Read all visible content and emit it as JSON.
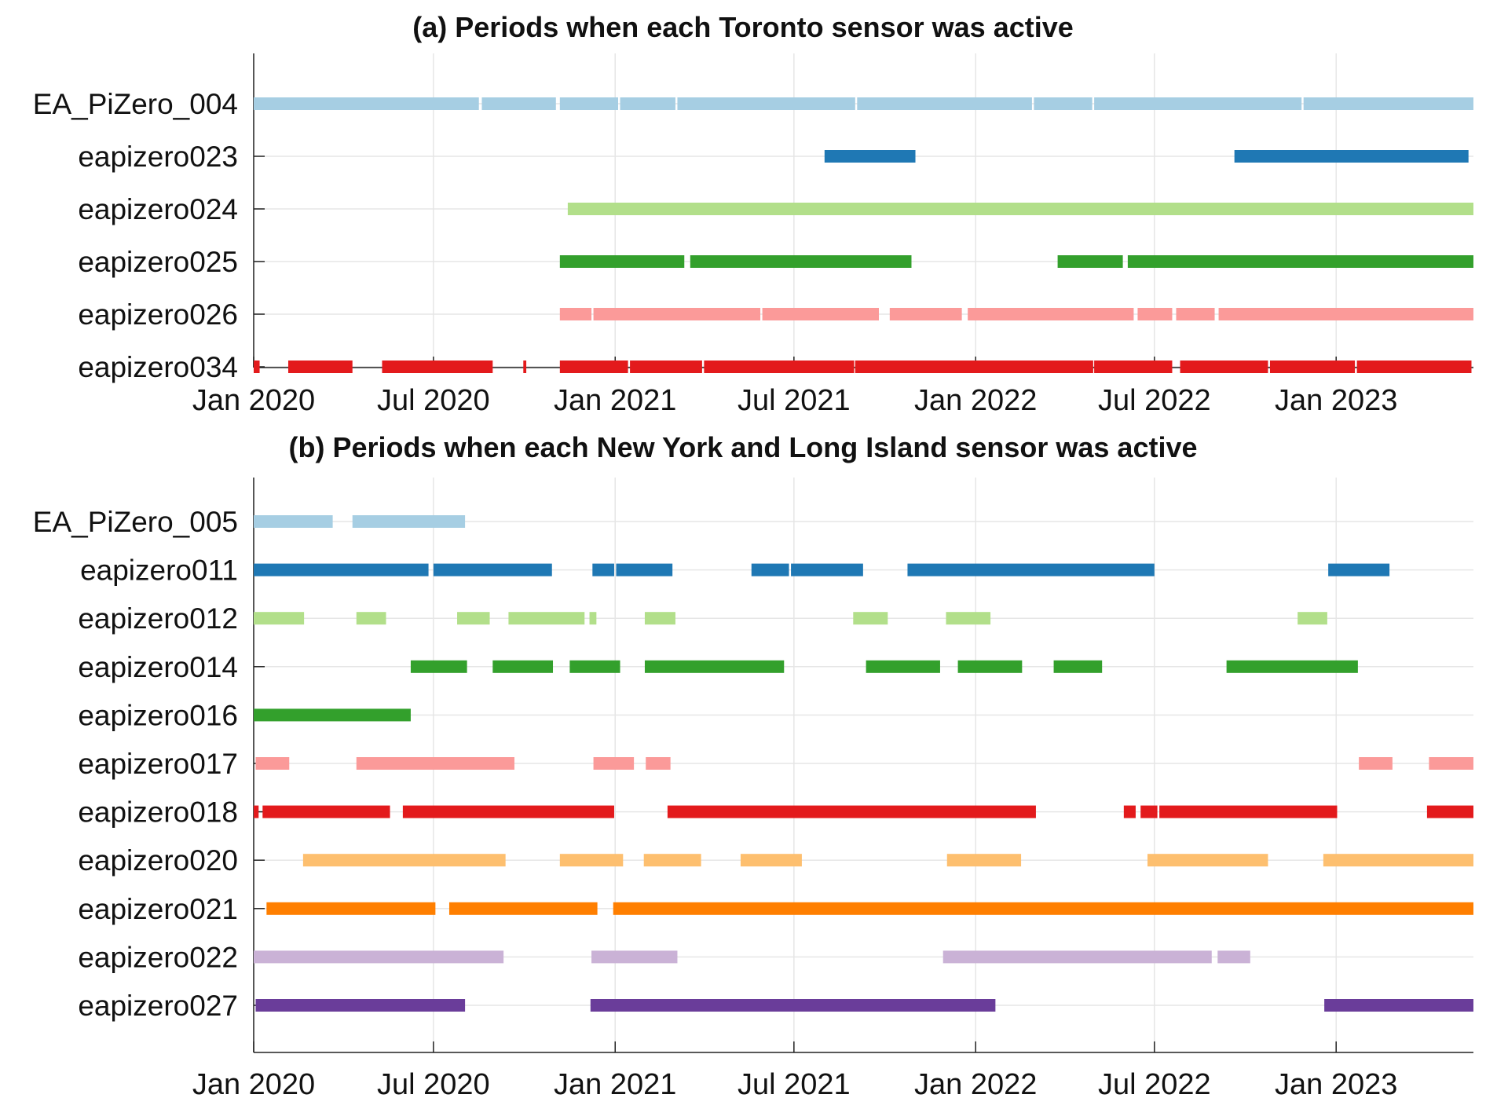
{
  "chart_data": [
    {
      "type": "timeline",
      "title": "(a) Periods when each Toronto sensor was active",
      "x_range": [
        "2020-01-01",
        "2023-05-20"
      ],
      "x_ticks": [
        {
          "date": "2020-01-01",
          "label": "Jan 2020"
        },
        {
          "date": "2020-07-01",
          "label": "Jul 2020"
        },
        {
          "date": "2021-01-01",
          "label": "Jan 2021"
        },
        {
          "date": "2021-07-01",
          "label": "Jul 2021"
        },
        {
          "date": "2022-01-01",
          "label": "Jan 2022"
        },
        {
          "date": "2022-07-01",
          "label": "Jul 2022"
        },
        {
          "date": "2023-01-01",
          "label": "Jan 2023"
        }
      ],
      "grid": true,
      "series": [
        {
          "name": "EA_PiZero_004",
          "color": "#a6cee3",
          "periods": [
            [
              "2020-01-01",
              "2020-08-16"
            ],
            [
              "2020-08-19",
              "2020-11-02"
            ],
            [
              "2020-11-06",
              "2021-01-04"
            ],
            [
              "2021-01-06",
              "2021-03-03"
            ],
            [
              "2021-03-05",
              "2021-09-01"
            ],
            [
              "2021-09-03",
              "2022-02-27"
            ],
            [
              "2022-03-01",
              "2022-04-29"
            ],
            [
              "2022-05-01",
              "2022-11-27"
            ],
            [
              "2022-11-29",
              "2023-05-20"
            ]
          ]
        },
        {
          "name": "eapizero023",
          "color": "#1f78b4",
          "periods": [
            [
              "2021-08-01",
              "2021-11-01"
            ],
            [
              "2022-09-20",
              "2023-05-15"
            ]
          ]
        },
        {
          "name": "eapizero024",
          "color": "#b2df8a",
          "periods": [
            [
              "2020-11-14",
              "2023-05-20"
            ]
          ]
        },
        {
          "name": "eapizero025",
          "color": "#33a02c",
          "periods": [
            [
              "2020-11-06",
              "2021-03-12"
            ],
            [
              "2021-03-18",
              "2021-10-28"
            ],
            [
              "2022-03-25",
              "2022-05-30"
            ],
            [
              "2022-06-04",
              "2023-05-20"
            ]
          ]
        },
        {
          "name": "eapizero026",
          "color": "#fb9a99",
          "periods": [
            [
              "2020-11-06",
              "2020-12-08"
            ],
            [
              "2020-12-10",
              "2021-05-28"
            ],
            [
              "2021-05-30",
              "2021-09-25"
            ],
            [
              "2021-10-06",
              "2021-12-18"
            ],
            [
              "2021-12-24",
              "2022-06-10"
            ],
            [
              "2022-06-14",
              "2022-07-19"
            ],
            [
              "2022-07-23",
              "2022-08-31"
            ],
            [
              "2022-09-04",
              "2023-05-20"
            ]
          ]
        },
        {
          "name": "eapizero034",
          "color": "#e31a1c",
          "periods": [
            [
              "2020-01-01",
              "2020-01-07"
            ],
            [
              "2020-02-05",
              "2020-04-10"
            ],
            [
              "2020-05-10",
              "2020-08-30"
            ],
            [
              "2020-09-30",
              "2020-10-03"
            ],
            [
              "2020-11-06",
              "2021-01-14"
            ],
            [
              "2021-01-16",
              "2021-03-30"
            ],
            [
              "2021-04-01",
              "2021-08-31"
            ],
            [
              "2021-09-01",
              "2022-04-30"
            ],
            [
              "2022-05-01",
              "2022-07-19"
            ],
            [
              "2022-07-27",
              "2022-10-24"
            ],
            [
              "2022-10-26",
              "2023-01-20"
            ],
            [
              "2023-01-22",
              "2023-05-18"
            ]
          ]
        }
      ]
    },
    {
      "type": "timeline",
      "title": "(b) Periods when each New York and Long Island sensor was active",
      "x_range": [
        "2020-01-01",
        "2023-05-20"
      ],
      "x_ticks": [
        {
          "date": "2020-01-01",
          "label": "Jan 2020"
        },
        {
          "date": "2020-07-01",
          "label": "Jul 2020"
        },
        {
          "date": "2021-01-01",
          "label": "Jan 2021"
        },
        {
          "date": "2021-07-01",
          "label": "Jul 2021"
        },
        {
          "date": "2022-01-01",
          "label": "Jan 2022"
        },
        {
          "date": "2022-07-01",
          "label": "Jul 2022"
        },
        {
          "date": "2023-01-01",
          "label": "Jan 2023"
        }
      ],
      "grid": true,
      "series": [
        {
          "name": "EA_PiZero_005",
          "color": "#a6cee3",
          "periods": [
            [
              "2020-01-01",
              "2020-03-21"
            ],
            [
              "2020-04-10",
              "2020-08-02"
            ]
          ]
        },
        {
          "name": "eapizero011",
          "color": "#1f78b4",
          "periods": [
            [
              "2020-01-01",
              "2020-06-26"
            ],
            [
              "2020-07-01",
              "2020-10-29"
            ],
            [
              "2020-12-09",
              "2020-12-31"
            ],
            [
              "2021-01-02",
              "2021-02-28"
            ],
            [
              "2021-05-19",
              "2021-06-26"
            ],
            [
              "2021-06-28",
              "2021-09-09"
            ],
            [
              "2021-10-24",
              "2022-07-01"
            ],
            [
              "2022-12-24",
              "2023-02-24"
            ]
          ]
        },
        {
          "name": "eapizero012",
          "color": "#b2df8a",
          "periods": [
            [
              "2020-01-01",
              "2020-02-21"
            ],
            [
              "2020-04-14",
              "2020-05-14"
            ],
            [
              "2020-07-25",
              "2020-08-27"
            ],
            [
              "2020-09-15",
              "2020-12-01"
            ],
            [
              "2020-12-06",
              "2020-12-13"
            ],
            [
              "2021-01-31",
              "2021-03-03"
            ],
            [
              "2021-08-30",
              "2021-10-04"
            ],
            [
              "2021-12-02",
              "2022-01-16"
            ],
            [
              "2022-11-23",
              "2022-12-23"
            ]
          ]
        },
        {
          "name": "eapizero014",
          "color": "#33a02c",
          "periods": [
            [
              "2020-06-08",
              "2020-08-04"
            ],
            [
              "2020-08-30",
              "2020-10-30"
            ],
            [
              "2020-11-16",
              "2021-01-06"
            ],
            [
              "2021-01-31",
              "2021-06-21"
            ],
            [
              "2021-09-12",
              "2021-11-26"
            ],
            [
              "2021-12-14",
              "2022-02-17"
            ],
            [
              "2022-03-21",
              "2022-05-09"
            ],
            [
              "2022-09-12",
              "2023-01-23"
            ]
          ]
        },
        {
          "name": "eapizero016",
          "color": "#33a02c",
          "periods": [
            [
              "2020-01-01",
              "2020-06-08"
            ]
          ]
        },
        {
          "name": "eapizero017",
          "color": "#fb9a99",
          "periods": [
            [
              "2020-01-03",
              "2020-02-06"
            ],
            [
              "2020-04-14",
              "2020-09-21"
            ],
            [
              "2020-12-10",
              "2021-01-20"
            ],
            [
              "2021-02-01",
              "2021-02-26"
            ],
            [
              "2023-01-24",
              "2023-02-27"
            ],
            [
              "2023-04-05",
              "2023-05-20"
            ]
          ]
        },
        {
          "name": "eapizero018",
          "color": "#e31a1c",
          "periods": [
            [
              "2020-01-01",
              "2020-01-06"
            ],
            [
              "2020-01-10",
              "2020-05-18"
            ],
            [
              "2020-05-31",
              "2020-12-31"
            ],
            [
              "2021-02-23",
              "2022-03-03"
            ],
            [
              "2022-05-31",
              "2022-06-12"
            ],
            [
              "2022-06-17",
              "2022-07-04"
            ],
            [
              "2022-07-06",
              "2023-01-02"
            ],
            [
              "2023-04-03",
              "2023-05-20"
            ]
          ]
        },
        {
          "name": "eapizero020",
          "color": "#fdbf6f",
          "periods": [
            [
              "2020-02-20",
              "2020-09-12"
            ],
            [
              "2020-11-06",
              "2021-01-09"
            ],
            [
              "2021-01-30",
              "2021-03-29"
            ],
            [
              "2021-05-08",
              "2021-07-09"
            ],
            [
              "2021-12-03",
              "2022-02-16"
            ],
            [
              "2022-06-24",
              "2022-10-24"
            ],
            [
              "2022-12-19",
              "2023-05-20"
            ]
          ]
        },
        {
          "name": "eapizero021",
          "color": "#ff7f00",
          "periods": [
            [
              "2020-01-14",
              "2020-07-03"
            ],
            [
              "2020-07-17",
              "2020-12-14"
            ],
            [
              "2020-12-30",
              "2023-05-20"
            ]
          ]
        },
        {
          "name": "eapizero022",
          "color": "#cab2d6",
          "periods": [
            [
              "2020-01-01",
              "2020-09-10"
            ],
            [
              "2020-12-08",
              "2021-03-05"
            ],
            [
              "2021-11-29",
              "2022-08-28"
            ],
            [
              "2022-09-03",
              "2022-10-06"
            ]
          ]
        },
        {
          "name": "eapizero027",
          "color": "#6a3d9a",
          "periods": [
            [
              "2020-01-03",
              "2020-08-02"
            ],
            [
              "2020-12-07",
              "2022-01-21"
            ],
            [
              "2022-12-20",
              "2023-05-20"
            ]
          ]
        }
      ]
    }
  ]
}
